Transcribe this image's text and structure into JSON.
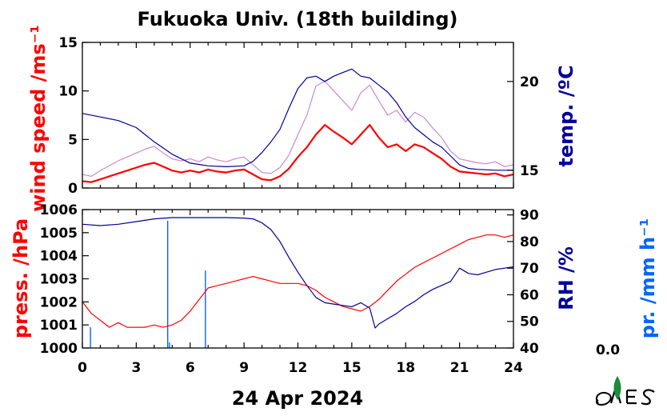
{
  "title": "Fukuoka Univ. (18th building)",
  "date_label": "24 Apr 2024",
  "precip_total": "0.0",
  "colors": {
    "wind_mean": "#ff0000",
    "wind_gust": "#cc88cc",
    "temperature": "#000099",
    "pressure": "#ff0000",
    "humidity": "#000099",
    "precip": "#0066ff",
    "logo": "#1a8c3a"
  },
  "chart_data": [
    {
      "type": "line",
      "name": "upper-panel",
      "x_ticks": [
        "0",
        "3",
        "6",
        "9",
        "12",
        "15",
        "18",
        "21",
        "24"
      ],
      "xlim": [
        0,
        24
      ],
      "left_axis": {
        "label": "wind speed /ms⁻¹",
        "ylim": [
          0,
          15
        ],
        "ticks": [
          "0",
          "5",
          "10",
          "15"
        ]
      },
      "right_axis": {
        "label": "temp. /ºC",
        "ylim": [
          14.0,
          22.2
        ],
        "ticks": [
          "15",
          "20"
        ]
      },
      "series": [
        {
          "axis": "left",
          "style": "thick",
          "points": [
            [
              0,
              0.7
            ],
            [
              0.5,
              0.6
            ],
            [
              1,
              0.9
            ],
            [
              1.5,
              1.2
            ],
            [
              2,
              1.5
            ],
            [
              2.5,
              1.8
            ],
            [
              3,
              2.1
            ],
            [
              3.5,
              2.4
            ],
            [
              4,
              2.6
            ],
            [
              4.5,
              2.2
            ],
            [
              5,
              1.8
            ],
            [
              5.5,
              1.6
            ],
            [
              6,
              1.8
            ],
            [
              6.5,
              1.6
            ],
            [
              7,
              1.9
            ],
            [
              7.5,
              1.7
            ],
            [
              8,
              1.6
            ],
            [
              8.5,
              1.8
            ],
            [
              9,
              1.9
            ],
            [
              9.5,
              1.4
            ],
            [
              10,
              0.9
            ],
            [
              10.5,
              0.8
            ],
            [
              11,
              1.2
            ],
            [
              11.5,
              2.0
            ],
            [
              12,
              3.2
            ],
            [
              12.5,
              4.2
            ],
            [
              13,
              5.5
            ],
            [
              13.5,
              6.5
            ],
            [
              14,
              5.8
            ],
            [
              14.5,
              5.2
            ],
            [
              15,
              4.5
            ],
            [
              15.5,
              5.5
            ],
            [
              16,
              6.5
            ],
            [
              16.5,
              5.2
            ],
            [
              17,
              4.2
            ],
            [
              17.5,
              4.5
            ],
            [
              18,
              3.8
            ],
            [
              18.5,
              4.5
            ],
            [
              19,
              4.2
            ],
            [
              19.5,
              3.6
            ],
            [
              20,
              3.0
            ],
            [
              20.5,
              2.2
            ],
            [
              21,
              1.7
            ],
            [
              21.5,
              1.6
            ],
            [
              22,
              1.5
            ],
            [
              22.5,
              1.4
            ],
            [
              23,
              1.5
            ],
            [
              23.5,
              1.2
            ],
            [
              24,
              1.4
            ]
          ]
        },
        {
          "axis": "left",
          "style": "thin",
          "points": [
            [
              0,
              1.4
            ],
            [
              0.5,
              1.2
            ],
            [
              1,
              1.8
            ],
            [
              1.5,
              2.3
            ],
            [
              2,
              2.8
            ],
            [
              2.5,
              3.2
            ],
            [
              3,
              3.6
            ],
            [
              3.5,
              4.0
            ],
            [
              4,
              4.3
            ],
            [
              4.5,
              3.6
            ],
            [
              5,
              3.0
            ],
            [
              5.5,
              2.8
            ],
            [
              6,
              3.0
            ],
            [
              6.5,
              2.7
            ],
            [
              7,
              3.2
            ],
            [
              7.5,
              2.9
            ],
            [
              8,
              2.7
            ],
            [
              8.5,
              3.0
            ],
            [
              9,
              3.2
            ],
            [
              9.5,
              2.4
            ],
            [
              10,
              1.6
            ],
            [
              10.5,
              1.5
            ],
            [
              11,
              2.1
            ],
            [
              11.5,
              3.4
            ],
            [
              12,
              5.5
            ],
            [
              12.5,
              7.5
            ],
            [
              13,
              10.5
            ],
            [
              13.5,
              11.0
            ],
            [
              14,
              10.0
            ],
            [
              14.5,
              9.0
            ],
            [
              15,
              8.0
            ],
            [
              15.5,
              9.8
            ],
            [
              16,
              10.6
            ],
            [
              16.5,
              9.0
            ],
            [
              17,
              7.5
            ],
            [
              17.5,
              8.0
            ],
            [
              18,
              6.8
            ],
            [
              18.5,
              7.8
            ],
            [
              19,
              7.3
            ],
            [
              19.5,
              6.2
            ],
            [
              20,
              5.2
            ],
            [
              20.5,
              3.8
            ],
            [
              21,
              3.0
            ],
            [
              21.5,
              2.8
            ],
            [
              22,
              2.6
            ],
            [
              22.5,
              2.5
            ],
            [
              23,
              2.7
            ],
            [
              23.5,
              2.2
            ],
            [
              24,
              2.4
            ]
          ]
        },
        {
          "axis": "right",
          "style": "normal",
          "points": [
            [
              0,
              18.2
            ],
            [
              1,
              18.0
            ],
            [
              2,
              17.8
            ],
            [
              3,
              17.4
            ],
            [
              3.5,
              17.0
            ],
            [
              4,
              16.6
            ],
            [
              5,
              15.9
            ],
            [
              6,
              15.4
            ],
            [
              7,
              15.25
            ],
            [
              8,
              15.2
            ],
            [
              9,
              15.25
            ],
            [
              9.5,
              15.5
            ],
            [
              10,
              16.0
            ],
            [
              10.5,
              16.6
            ],
            [
              11,
              17.3
            ],
            [
              11.5,
              18.5
            ],
            [
              12,
              19.6
            ],
            [
              12.5,
              20.2
            ],
            [
              13,
              20.3
            ],
            [
              13.5,
              20.0
            ],
            [
              14,
              20.3
            ],
            [
              14.5,
              20.5
            ],
            [
              15,
              20.7
            ],
            [
              15.5,
              20.3
            ],
            [
              16,
              20.2
            ],
            [
              16.5,
              19.8
            ],
            [
              17,
              19.4
            ],
            [
              17.5,
              18.8
            ],
            [
              18,
              18.0
            ],
            [
              18.5,
              17.4
            ],
            [
              19,
              17.0
            ],
            [
              19.5,
              16.6
            ],
            [
              20,
              16.3
            ],
            [
              20.5,
              15.8
            ],
            [
              21,
              15.3
            ],
            [
              21.5,
              15.1
            ],
            [
              22,
              15.05
            ],
            [
              23,
              15.0
            ],
            [
              24,
              15.0
            ]
          ]
        }
      ]
    },
    {
      "type": "line",
      "name": "lower-panel",
      "x_ticks": [
        "0",
        "3",
        "6",
        "9",
        "12",
        "15",
        "18",
        "21",
        "24"
      ],
      "xlim": [
        0,
        24
      ],
      "left_axis": {
        "label": "press. /hPa",
        "ylim": [
          1000,
          1006
        ],
        "ticks": [
          "1000",
          "1001",
          "1002",
          "1003",
          "1004",
          "1005",
          "1006"
        ]
      },
      "right_axis": {
        "label": "RH /%",
        "ylim": [
          40,
          92
        ],
        "ticks": [
          "40",
          "50",
          "60",
          "70",
          "80",
          "90"
        ]
      },
      "precip_axis": {
        "label": "pr. /mm h⁻¹"
      },
      "series": [
        {
          "axis": "left",
          "points": [
            [
              0,
              1002.0
            ],
            [
              0.5,
              1001.5
            ],
            [
              1,
              1001.2
            ],
            [
              1.5,
              1000.9
            ],
            [
              2,
              1001.1
            ],
            [
              2.5,
              1000.9
            ],
            [
              3,
              1000.9
            ],
            [
              3.5,
              1000.9
            ],
            [
              4,
              1001.0
            ],
            [
              4.5,
              1000.9
            ],
            [
              5,
              1001.0
            ],
            [
              5.5,
              1001.2
            ],
            [
              6,
              1001.6
            ],
            [
              6.5,
              1002.1
            ],
            [
              7,
              1002.6
            ],
            [
              7.5,
              1002.7
            ],
            [
              8,
              1002.8
            ],
            [
              8.5,
              1002.9
            ],
            [
              9,
              1003.0
            ],
            [
              9.5,
              1003.1
            ],
            [
              10,
              1003.0
            ],
            [
              10.5,
              1002.9
            ],
            [
              11,
              1002.8
            ],
            [
              11.5,
              1002.8
            ],
            [
              12,
              1002.8
            ],
            [
              12.5,
              1002.7
            ],
            [
              13,
              1002.5
            ],
            [
              13.5,
              1002.2
            ],
            [
              14,
              1002.0
            ],
            [
              14.5,
              1001.8
            ],
            [
              15,
              1001.7
            ],
            [
              15.5,
              1001.6
            ],
            [
              16,
              1001.8
            ],
            [
              16.5,
              1002.1
            ],
            [
              17,
              1002.5
            ],
            [
              17.5,
              1002.9
            ],
            [
              18,
              1003.2
            ],
            [
              18.5,
              1003.5
            ],
            [
              19,
              1003.7
            ],
            [
              19.5,
              1003.9
            ],
            [
              20,
              1004.1
            ],
            [
              20.5,
              1004.3
            ],
            [
              21,
              1004.5
            ],
            [
              21.5,
              1004.7
            ],
            [
              22,
              1004.8
            ],
            [
              22.5,
              1004.9
            ],
            [
              23,
              1004.9
            ],
            [
              23.5,
              1004.8
            ],
            [
              24,
              1004.9
            ]
          ]
        },
        {
          "axis": "right",
          "points": [
            [
              0,
              86.5
            ],
            [
              1,
              86.0
            ],
            [
              2,
              86.5
            ],
            [
              3,
              87.5
            ],
            [
              4,
              88.5
            ],
            [
              5,
              89.0
            ],
            [
              6,
              89.0
            ],
            [
              7,
              89.0
            ],
            [
              8,
              89.0
            ],
            [
              9,
              88.8
            ],
            [
              9.5,
              88.5
            ],
            [
              10,
              87.0
            ],
            [
              10.5,
              84.5
            ],
            [
              11,
              80.0
            ],
            [
              11.5,
              74.0
            ],
            [
              12,
              68.5
            ],
            [
              12.5,
              63.5
            ],
            [
              13,
              59.0
            ],
            [
              13.5,
              57.0
            ],
            [
              14,
              56.5
            ],
            [
              14.5,
              56.0
            ],
            [
              15,
              55.5
            ],
            [
              15.5,
              57.0
            ],
            [
              16,
              55.0
            ],
            [
              16.3,
              47.5
            ],
            [
              16.5,
              49.0
            ],
            [
              17,
              51.0
            ],
            [
              17.5,
              53.0
            ],
            [
              18,
              55.5
            ],
            [
              18.5,
              57.5
            ],
            [
              19,
              60.0
            ],
            [
              19.5,
              62.0
            ],
            [
              20,
              63.5
            ],
            [
              20.5,
              65.0
            ],
            [
              21,
              70.0
            ],
            [
              21.5,
              68.0
            ],
            [
              22,
              67.5
            ],
            [
              22.5,
              68.5
            ],
            [
              23,
              69.5
            ],
            [
              23.5,
              70.0
            ],
            [
              24,
              70.5
            ]
          ]
        }
      ],
      "precip_bars": [
        {
          "x": 0.45,
          "value": 0.15
        },
        {
          "x": 4.75,
          "value": 0.92
        },
        {
          "x": 4.85,
          "value": 0.04
        },
        {
          "x": 6.85,
          "value": 0.56
        }
      ]
    }
  ]
}
